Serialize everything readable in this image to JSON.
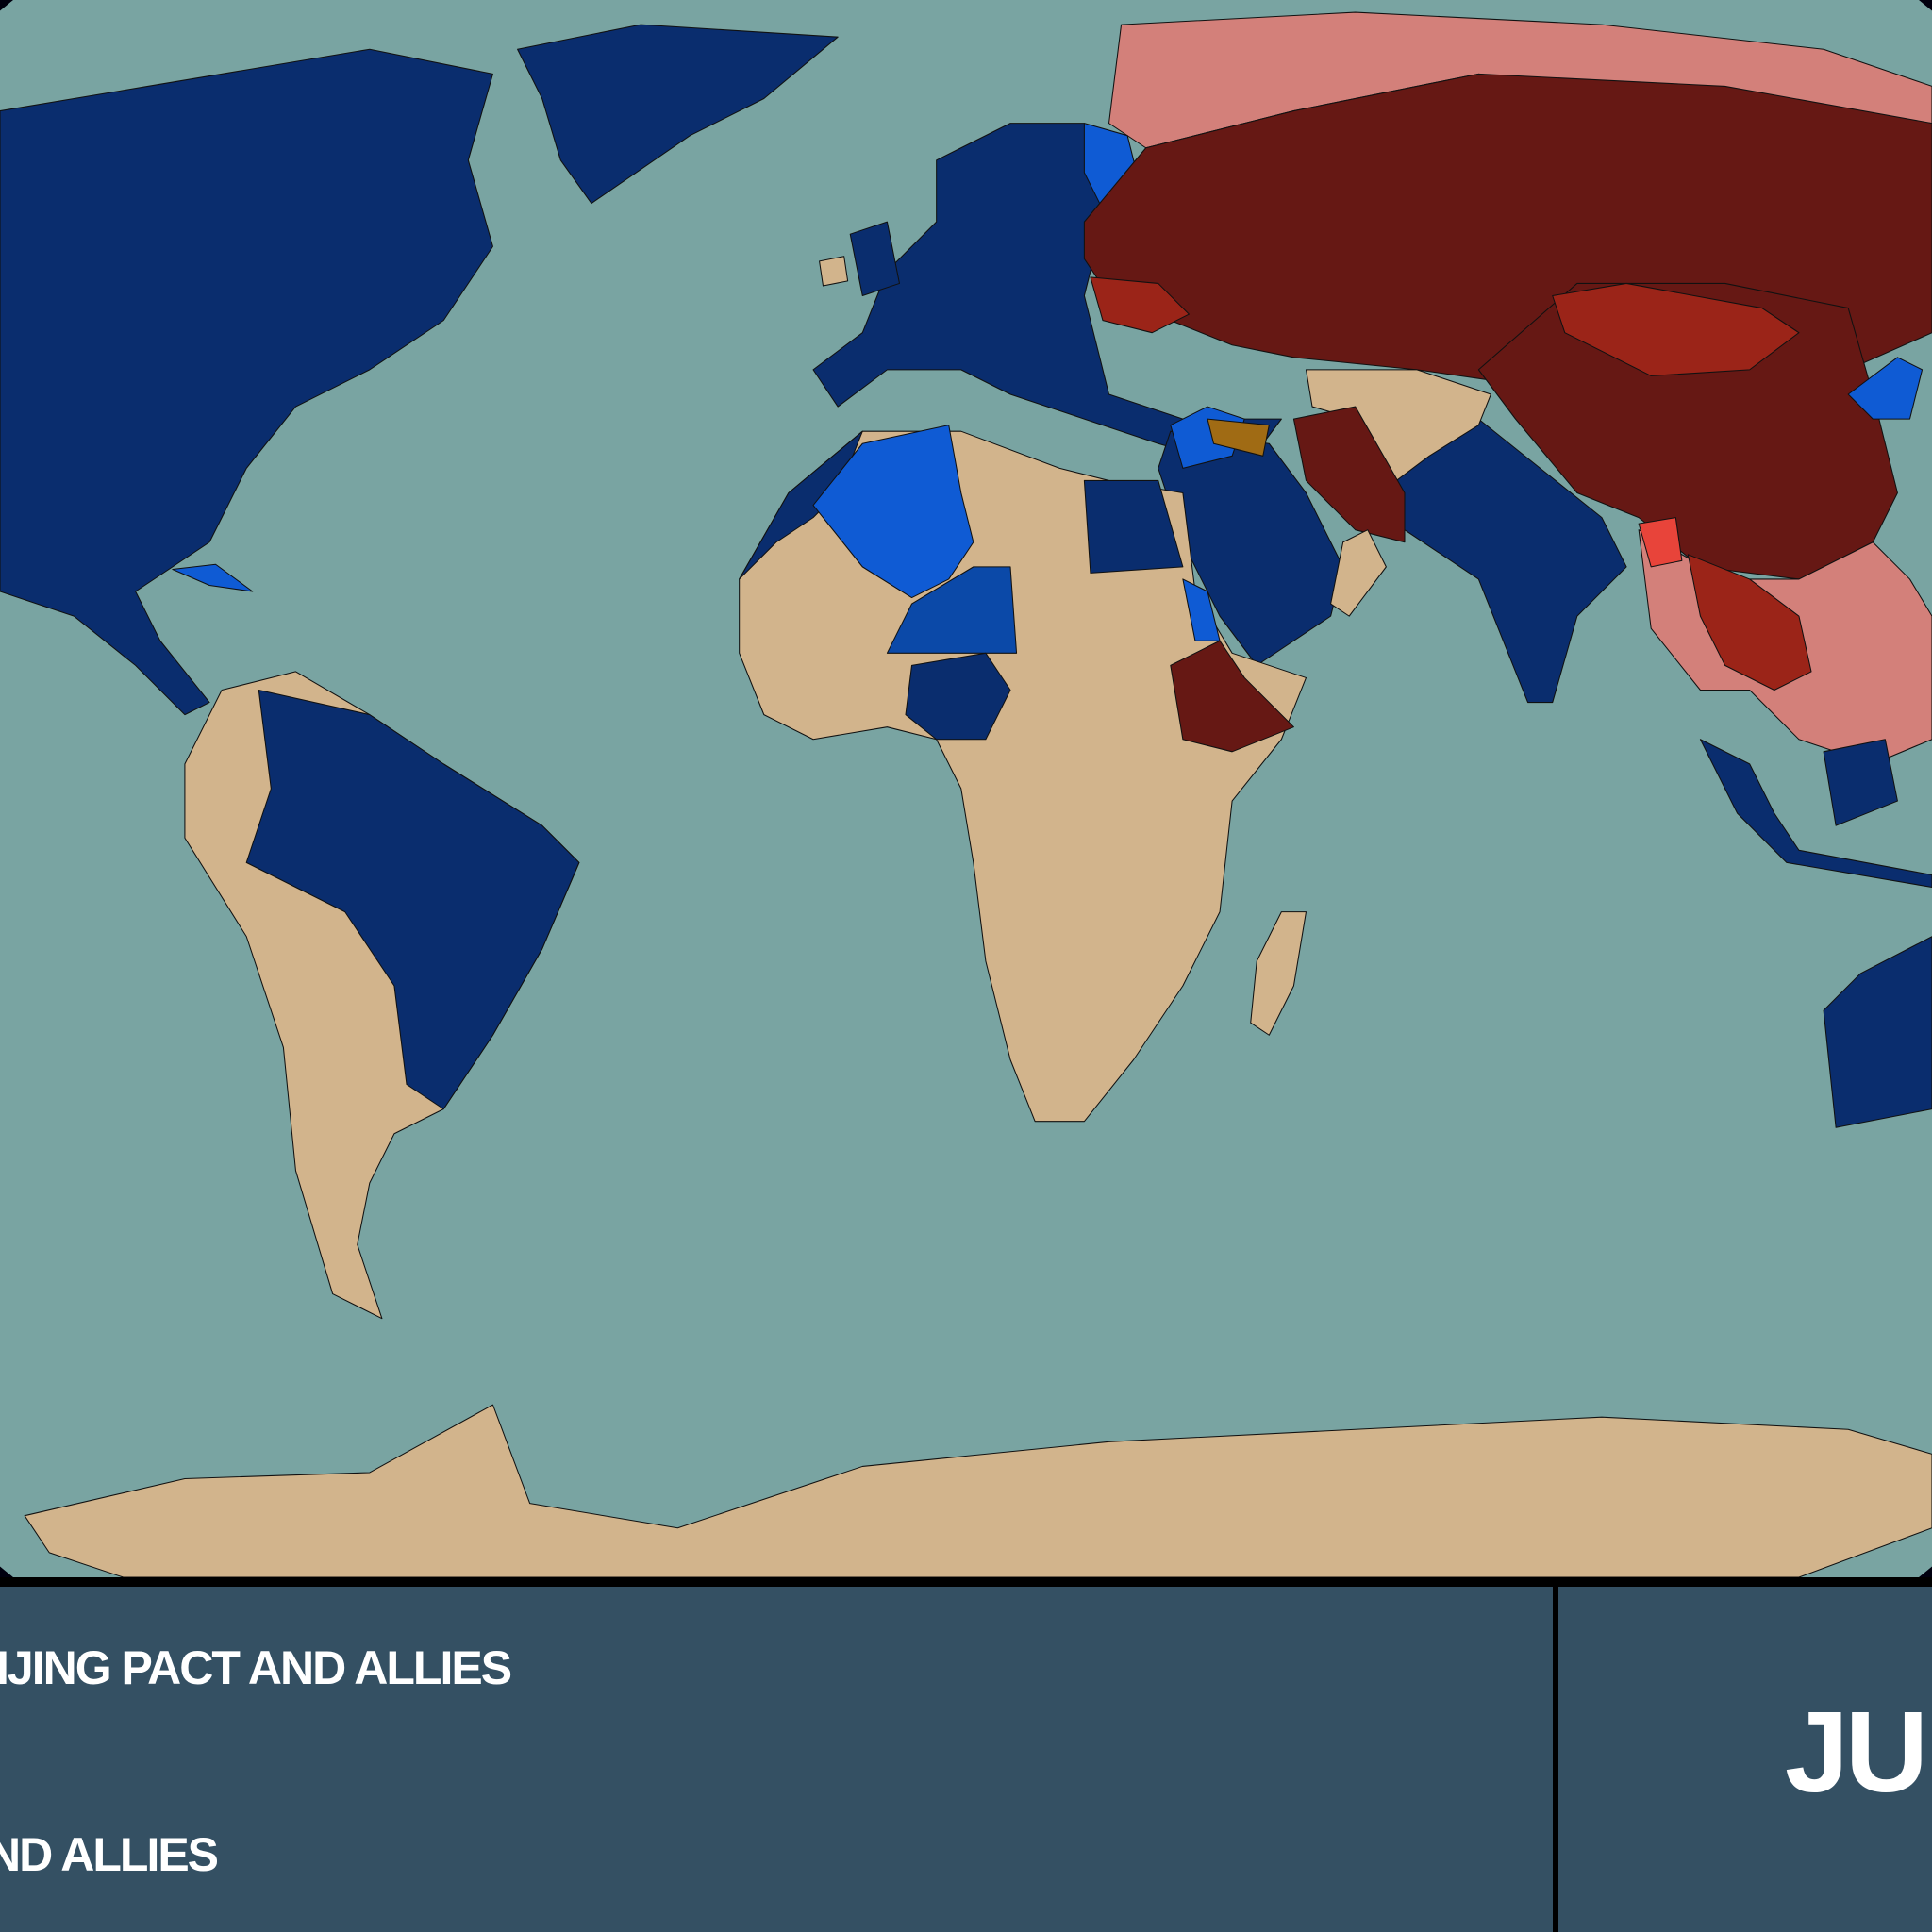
{
  "map": {
    "colors": {
      "ocean": "#79a4a2",
      "space": "#00000f",
      "western_bloc": "#0a2d6e",
      "western_ally": "#0f5bd4",
      "western_mid": "#0b49a8",
      "neutral": "#d2b48c",
      "beijing_pact": "#661814",
      "beijing_ally": "#9b2418",
      "beijing_occupied": "#d3807a",
      "contested": "#e8443a",
      "other": "#a06b14"
    }
  },
  "legend": {
    "items": [
      {
        "label": "IJING PACT AND ALLIES"
      },
      {
        "label": "ND ALLIES"
      }
    ]
  },
  "date_panel": {
    "text": "JUN"
  }
}
